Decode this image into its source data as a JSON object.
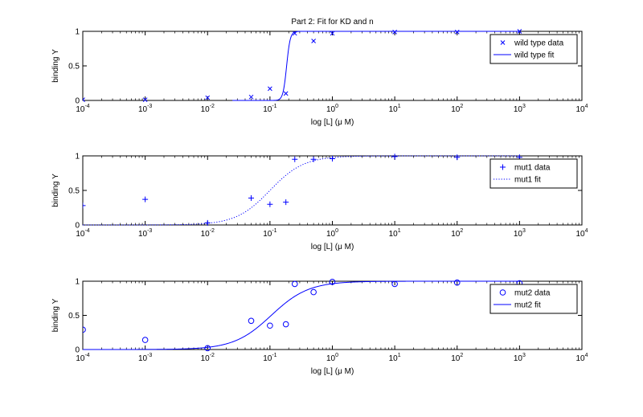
{
  "chart_data": [
    {
      "type": "scatter",
      "title": "Part 2: Fit for KD and n",
      "xlabel": "log [L] (μ M)",
      "ylabel": "binding Y",
      "xscale": "log",
      "xlim": [
        0.0001,
        10000
      ],
      "ylim": [
        0,
        1
      ],
      "x_ticks": [
        "10-4",
        "10-3",
        "10-2",
        "10-1",
        "100",
        "101",
        "102",
        "103",
        "104"
      ],
      "y_ticks": [
        "0",
        "0.5",
        "1"
      ],
      "legend_position": "top-right",
      "series": [
        {
          "name": "wild type data",
          "kind": "points",
          "marker": "x",
          "color": "#0000ff",
          "x": [
            0.0001,
            0.001,
            0.01,
            0.05,
            0.1,
            0.18,
            0.25,
            0.5,
            1,
            10,
            100,
            1000
          ],
          "y": [
            0.01,
            0.01,
            0.04,
            0.05,
            0.17,
            0.1,
            0.97,
            0.86,
            0.97,
            0.99,
            0.99,
            1.0
          ]
        },
        {
          "name": "wild type fit",
          "kind": "line",
          "style": "solid",
          "color": "#0000ff",
          "model": {
            "kd": 0.185,
            "n": 15
          },
          "xrange": [
            0.025,
            1000
          ]
        }
      ]
    },
    {
      "type": "scatter",
      "title": "",
      "xlabel": "log [L] (μ M)",
      "ylabel": "binding Y",
      "xscale": "log",
      "xlim": [
        0.0001,
        10000
      ],
      "ylim": [
        0,
        1
      ],
      "x_ticks": [
        "10-4",
        "10-3",
        "10-2",
        "10-1",
        "100",
        "101",
        "102",
        "103",
        "104"
      ],
      "y_ticks": [
        "0",
        "0.5",
        "1"
      ],
      "legend_position": "top-right",
      "series": [
        {
          "name": "mut1 data",
          "kind": "points",
          "marker": "+",
          "color": "#0000ff",
          "x": [
            0.0001,
            0.001,
            0.01,
            0.05,
            0.1,
            0.18,
            0.25,
            0.5,
            1,
            10,
            100,
            1000
          ],
          "y": [
            0.28,
            0.37,
            0.03,
            0.39,
            0.3,
            0.33,
            0.95,
            0.95,
            0.96,
            0.99,
            0.98,
            0.98
          ]
        },
        {
          "name": "mut1 fit",
          "kind": "line",
          "style": "dotted",
          "color": "#0000ff",
          "model": {
            "kd": 0.1,
            "n": 1.6
          },
          "xrange": [
            0.0001,
            1000
          ]
        }
      ]
    },
    {
      "type": "scatter",
      "title": "",
      "xlabel": "log [L] (μ M)",
      "ylabel": "binding Y",
      "xscale": "log",
      "xlim": [
        0.0001,
        10000
      ],
      "ylim": [
        0,
        1
      ],
      "x_ticks": [
        "10-4",
        "10-3",
        "10-2",
        "10-1",
        "100",
        "101",
        "102",
        "103",
        "104"
      ],
      "y_ticks": [
        "0",
        "0.5",
        "1"
      ],
      "legend_position": "top-right",
      "series": [
        {
          "name": "mut2 data",
          "kind": "points",
          "marker": "o",
          "color": "#0000ff",
          "x": [
            0.0001,
            0.001,
            0.01,
            0.05,
            0.1,
            0.18,
            0.25,
            0.5,
            1,
            10,
            100,
            1000
          ],
          "y": [
            0.29,
            0.14,
            0.02,
            0.42,
            0.35,
            0.37,
            0.96,
            0.84,
            0.99,
            0.96,
            0.98,
            0.97
          ]
        },
        {
          "name": "mut2 fit",
          "kind": "line",
          "style": "solid",
          "color": "#0000ff",
          "model": {
            "kd": 0.105,
            "n": 1.45
          },
          "xrange": [
            0.0001,
            1000
          ]
        }
      ]
    }
  ]
}
